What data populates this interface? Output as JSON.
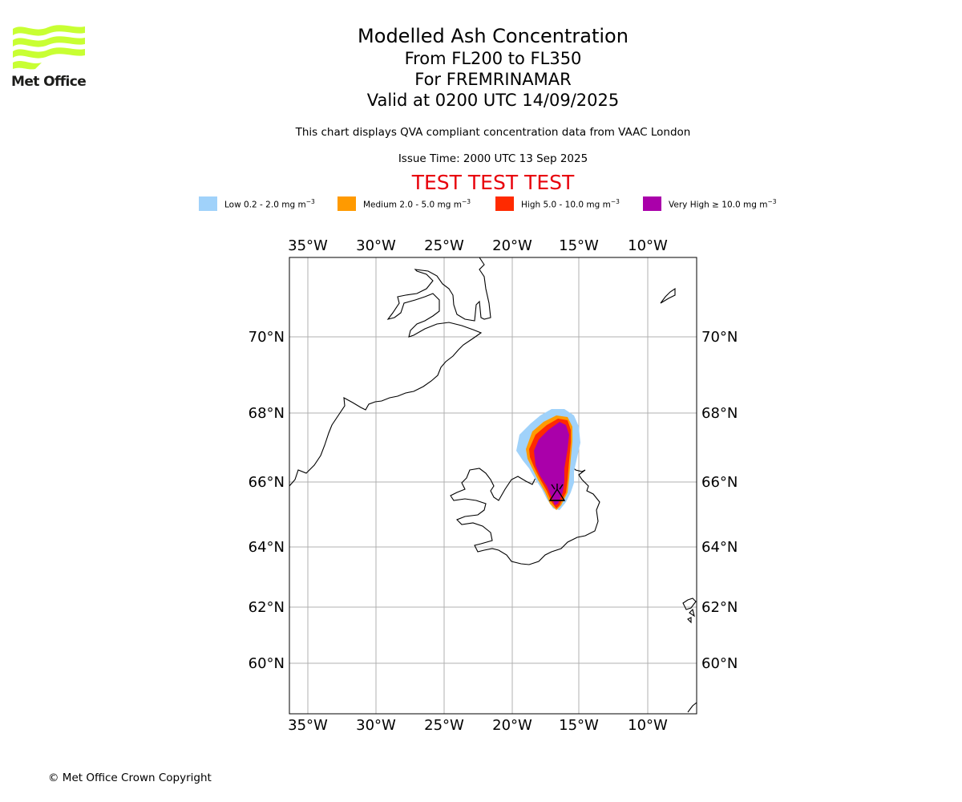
{
  "logo": {
    "text": "Met Office",
    "icon": "met-office-waves-logo",
    "color": "#c8ff33"
  },
  "title": {
    "line1": "Modelled Ash Concentration",
    "line2": "From FL200 to FL350",
    "line3": "For FREMRINAMAR",
    "line4": "Valid at 0200 UTC 14/09/2025"
  },
  "description": "This chart displays QVA compliant concentration data from VAAC London",
  "issue_time": "Issue Time: 2000 UTC 13 Sep 2025",
  "test_banner": "TEST TEST TEST",
  "legend": [
    {
      "label": "Low 0.2 - 2.0 mg m",
      "color": "#a0d2fa"
    },
    {
      "label": "Medium 2.0 - 5.0 mg m",
      "color": "#ff9a00"
    },
    {
      "label": "High 5.0 - 10.0 mg m",
      "color": "#ff2a00"
    },
    {
      "label": "Very High ≥ 10.0 mg m",
      "color": "#aa00aa"
    }
  ],
  "legend_unit_exponent": "−3",
  "map": {
    "projection": "polar stereographic",
    "lon_labels": [
      "35°W",
      "30°W",
      "25°W",
      "20°W",
      "15°W",
      "10°W"
    ],
    "lat_labels": [
      "70°N",
      "68°N",
      "66°N",
      "64°N",
      "62°N",
      "60°N"
    ],
    "volcano": {
      "name": "FREMRINAMAR",
      "icon": "volcano-icon"
    },
    "grid": true
  },
  "copyright": "© Met Office Crown Copyright"
}
